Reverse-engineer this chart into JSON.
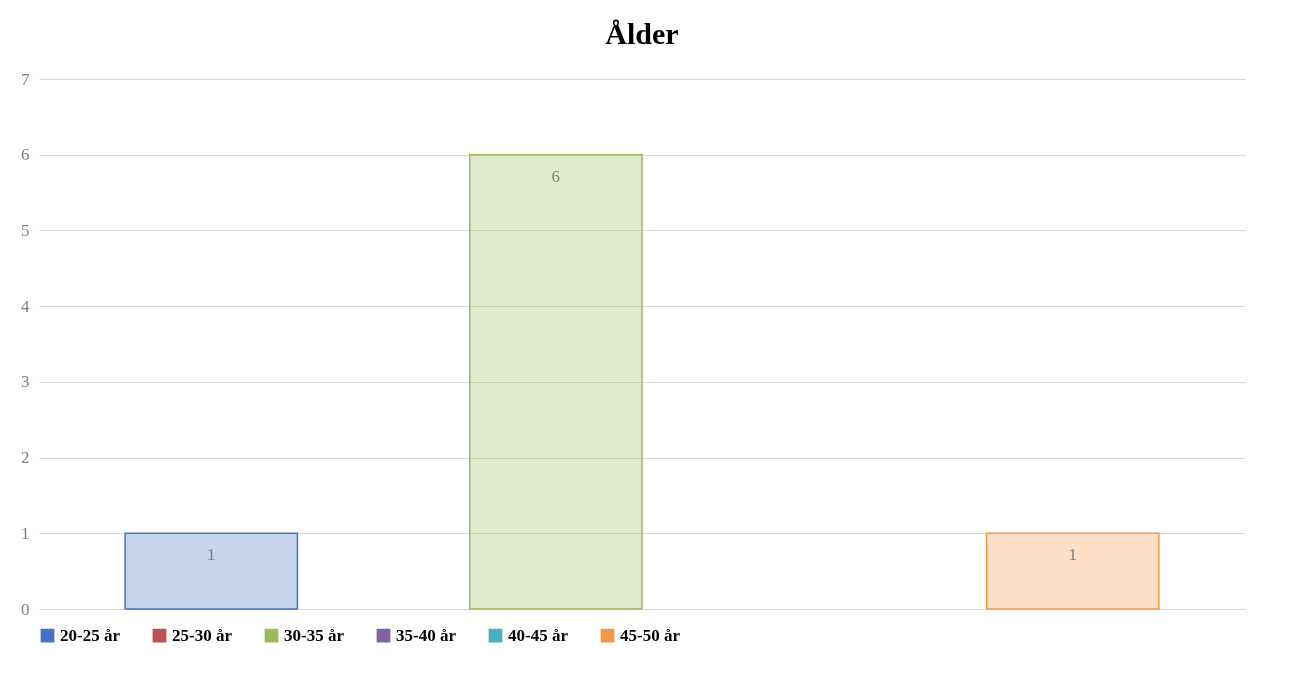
{
  "chart_data": {
    "type": "bar",
    "title": "Ålder",
    "categories": [
      null
    ],
    "series": [
      {
        "name": "20-25 år",
        "color": "#4472c4",
        "values": [
          1
        ]
      },
      {
        "name": "25-30 år",
        "color": "#c0504d",
        "values": [
          null
        ]
      },
      {
        "name": "30-35 år",
        "color": "#9bbb59",
        "values": [
          6
        ]
      },
      {
        "name": "35-40 år",
        "color": "#8064a2",
        "values": [
          null
        ]
      },
      {
        "name": "40-45 år",
        "color": "#4bacc6",
        "values": [
          null
        ]
      },
      {
        "name": "45-50 år",
        "color": "#f79646",
        "values": [
          1
        ]
      }
    ],
    "ylim": [
      0,
      7
    ],
    "yticks": [
      0,
      1,
      2,
      3,
      4,
      5,
      6,
      7
    ],
    "grid": "y",
    "legend": "bottom",
    "data_labels": true
  }
}
